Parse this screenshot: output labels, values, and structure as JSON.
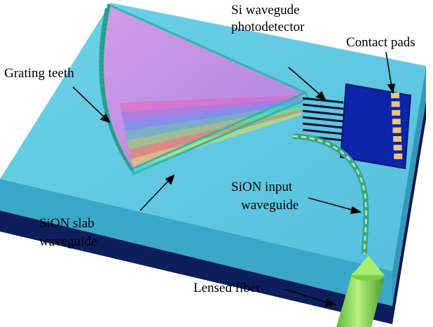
{
  "labels": {
    "photodetector_line1": "Si wavegude",
    "photodetector_line2": "photodetector",
    "contact_pads": "Contact pads",
    "grating_teeth": "Grating teeth",
    "input_line1": "SiON input",
    "input_line2": "waveguide",
    "slab_line1": "SiON slab",
    "slab_line2": "waveguide",
    "fiber": "Lensed fiber"
  },
  "colors": {
    "substrate_top": "#5fc8e0",
    "substrate_side": "#3aa6c8",
    "substrate_base": "#0d1e5c",
    "slab_purple": "#c98be0",
    "slab_edge": "#2fb9a8",
    "contact_pad_bg": "#0c24a8",
    "contact_metal": "#e8c878",
    "fiber_green": "#8ee05a",
    "waveguide_core": "#e8e070"
  },
  "spectrum_colors": [
    "#e860c0",
    "#9a70e0",
    "#5a8cf0",
    "#40c8b0",
    "#8ae050",
    "#f08838",
    "#f0e040"
  ]
}
